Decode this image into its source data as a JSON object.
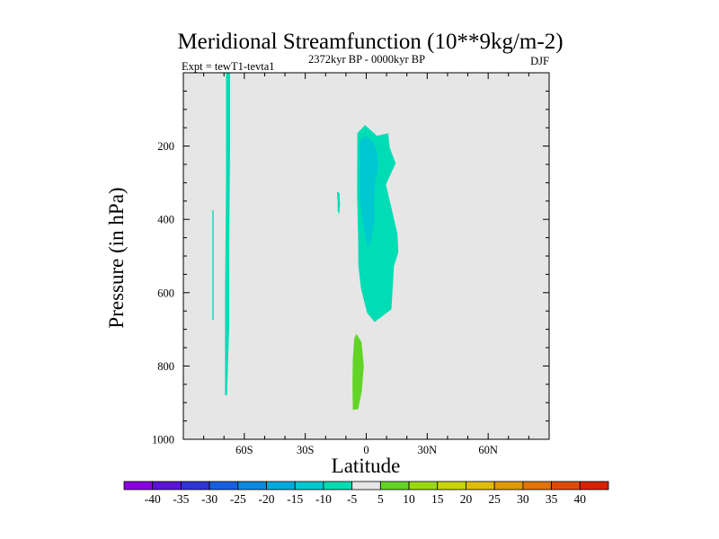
{
  "chart_data": {
    "type": "heatmap",
    "title": "Meridional Streamfunction (10**9kg/m-2)",
    "subtitle_left": "Expt = tewT1-tevta1",
    "subtitle_center": "2372kyr BP - 0000kyr BP",
    "subtitle_right": "DJF",
    "xlabel": "Latitude",
    "ylabel": "Pressure (in hPa)",
    "xlim": [
      -90,
      90
    ],
    "ylim": [
      1000,
      0
    ],
    "x_ticks": [
      {
        "value": -60,
        "label": "60S"
      },
      {
        "value": -30,
        "label": "30S"
      },
      {
        "value": 0,
        "label": "0"
      },
      {
        "value": 30,
        "label": "30N"
      },
      {
        "value": 60,
        "label": "60N"
      }
    ],
    "x_minor_step": 10,
    "y_ticks": [
      {
        "value": 200,
        "label": "200"
      },
      {
        "value": 400,
        "label": "400"
      },
      {
        "value": 600,
        "label": "600"
      },
      {
        "value": 800,
        "label": "800"
      },
      {
        "value": 1000,
        "label": "1000"
      }
    ],
    "y_minor_step": 50,
    "background_color": "#e6e6e6",
    "colorbar": {
      "labels": [
        "-40",
        "-35",
        "-30",
        "-25",
        "-20",
        "-15",
        "-10",
        "-5",
        "5",
        "10",
        "15",
        "20",
        "25",
        "30",
        "35",
        "40"
      ],
      "colors": [
        "#8a00e0",
        "#5b13d6",
        "#2f33d6",
        "#1560e0",
        "#0a8ae0",
        "#02abde",
        "#00c8d0",
        "#00dcb4",
        "#e6e6e6",
        "#62d426",
        "#9ad80e",
        "#c8d40a",
        "#e0bc08",
        "#e09a08",
        "#e07408",
        "#e04a06",
        "#d82202"
      ]
    },
    "regions": [
      {
        "name": "polar-cell-strip",
        "level": "-5 to -10",
        "color": "#00dcb4",
        "outline": [
          [
            -69,
            0
          ],
          [
            -67,
            0
          ],
          [
            -67,
            200
          ],
          [
            -67.5,
            500
          ],
          [
            -67.5,
            700
          ],
          [
            -68.5,
            880
          ],
          [
            -69.5,
            880
          ],
          [
            -69.5,
            600
          ],
          [
            -69,
            300
          ]
        ]
      },
      {
        "name": "thin-strip",
        "level": "-5 to -10",
        "color": "#00dcb4",
        "outline": [
          [
            -75.7,
            375
          ],
          [
            -75.1,
            375
          ],
          [
            -75.1,
            675
          ],
          [
            -75.7,
            675
          ]
        ]
      },
      {
        "name": "small-blob",
        "level": "-5 to -10",
        "color": "#00dcb4",
        "outline": [
          [
            -14.4,
            325
          ],
          [
            -13.2,
            328
          ],
          [
            -12.9,
            360
          ],
          [
            -13.3,
            385
          ],
          [
            -14.0,
            378
          ],
          [
            -14.1,
            350
          ]
        ]
      },
      {
        "name": "tropical-cell",
        "level": "-5 to -10",
        "color": "#00dcb4",
        "outline": [
          [
            -4.4,
            165
          ],
          [
            -0.6,
            143
          ],
          [
            5.3,
            172
          ],
          [
            10.8,
            165
          ],
          [
            11.6,
            205
          ],
          [
            14.5,
            247
          ],
          [
            9.7,
            305
          ],
          [
            15.4,
            440
          ],
          [
            15.8,
            490
          ],
          [
            13.6,
            528
          ],
          [
            12.4,
            645
          ],
          [
            7.8,
            665
          ],
          [
            4.1,
            680
          ],
          [
            0.4,
            655
          ],
          [
            -2.6,
            588
          ],
          [
            -3.9,
            525
          ],
          [
            -4.0,
            450
          ],
          [
            -4.5,
            330
          ]
        ]
      },
      {
        "name": "tropical-cell-core",
        "level": "-10 to -15",
        "color": "#00c8d0",
        "outline": [
          [
            -3.2,
            185
          ],
          [
            -0.4,
            172
          ],
          [
            3.4,
            188
          ],
          [
            5.3,
            218
          ],
          [
            5.9,
            262
          ],
          [
            4.4,
            300
          ],
          [
            3.8,
            350
          ],
          [
            4.1,
            400
          ],
          [
            2.6,
            450
          ],
          [
            0.8,
            478
          ],
          [
            -0.3,
            450
          ],
          [
            -2.0,
            392
          ],
          [
            -3.2,
            340
          ]
        ]
      },
      {
        "name": "lower-positive-cell",
        "level": "5 to 10",
        "color": "#62d426",
        "outline": [
          [
            -5.9,
            725
          ],
          [
            -4.8,
            712
          ],
          [
            -2.3,
            735
          ],
          [
            -1.2,
            800
          ],
          [
            -2.2,
            870
          ],
          [
            -4.0,
            918
          ],
          [
            -6.6,
            920
          ],
          [
            -6.8,
            850
          ],
          [
            -6.6,
            780
          ]
        ]
      }
    ]
  }
}
